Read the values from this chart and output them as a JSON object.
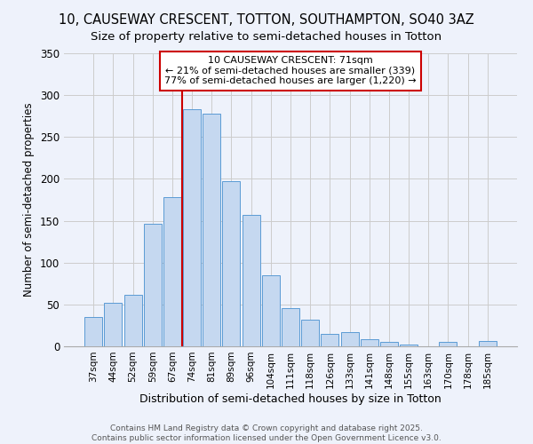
{
  "title": "10, CAUSEWAY CRESCENT, TOTTON, SOUTHAMPTON, SO40 3AZ",
  "subtitle": "Size of property relative to semi-detached houses in Totton",
  "xlabel": "Distribution of semi-detached houses by size in Totton",
  "ylabel": "Number of semi-detached properties",
  "categories": [
    "37sqm",
    "44sqm",
    "52sqm",
    "59sqm",
    "67sqm",
    "74sqm",
    "81sqm",
    "89sqm",
    "96sqm",
    "104sqm",
    "111sqm",
    "118sqm",
    "126sqm",
    "133sqm",
    "141sqm",
    "148sqm",
    "155sqm",
    "163sqm",
    "170sqm",
    "178sqm",
    "185sqm"
  ],
  "values": [
    35,
    52,
    61,
    146,
    178,
    283,
    278,
    197,
    157,
    85,
    46,
    32,
    15,
    17,
    8,
    5,
    2,
    0,
    5,
    0,
    6
  ],
  "bar_color": "#c5d8f0",
  "bar_edge_color": "#5b9bd5",
  "marker_line_color": "#cc0000",
  "annotation_box_edge": "#cc0000",
  "marker_label": "10 CAUSEWAY CRESCENT: 71sqm",
  "marker_smaller": "← 21% of semi-detached houses are smaller (339)",
  "marker_larger": "77% of semi-detached houses are larger (1,220) →",
  "ylim": [
    0,
    350
  ],
  "yticks": [
    0,
    50,
    100,
    150,
    200,
    250,
    300,
    350
  ],
  "background_color": "#eef2fb",
  "grid_color": "#cccccc",
  "footer1": "Contains HM Land Registry data © Crown copyright and database right 2025.",
  "footer2": "Contains public sector information licensed under the Open Government Licence v3.0.",
  "title_fontsize": 10.5,
  "subtitle_fontsize": 9.5,
  "annot_fontsize": 8.0,
  "xlabel_fontsize": 9.0,
  "ylabel_fontsize": 8.5,
  "tick_fontsize": 7.5,
  "footer_fontsize": 6.5
}
